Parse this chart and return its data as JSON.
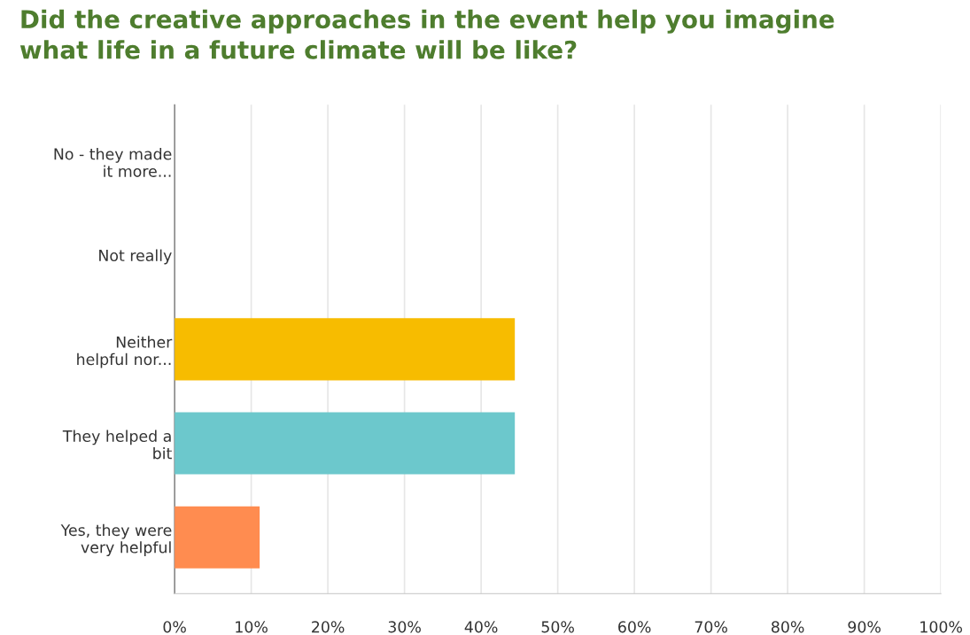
{
  "chart_data": {
    "type": "bar",
    "orientation": "horizontal",
    "title": "Did the creative approaches in the event help you imagine\nwhat life in a future climate will be like?",
    "categories": [
      "No - they made\nit more...",
      "Not really",
      "Neither\nhelpful nor...",
      "They helped a\nbit",
      "Yes, they were\nvery helpful"
    ],
    "values": [
      0,
      0,
      44.4,
      44.4,
      11.1
    ],
    "colors": [
      "#8bb9e0",
      "#a0a0a0",
      "#f7bc00",
      "#6cc8cc",
      "#ff8c50"
    ],
    "xlim": [
      0,
      100
    ],
    "xticks": [
      {
        "value": 0,
        "label": "0%"
      },
      {
        "value": 10,
        "label": "10%"
      },
      {
        "value": 20,
        "label": "20%"
      },
      {
        "value": 30,
        "label": "30%"
      },
      {
        "value": 40,
        "label": "40%"
      },
      {
        "value": 50,
        "label": "50%"
      },
      {
        "value": 60,
        "label": "60%"
      },
      {
        "value": 70,
        "label": "70%"
      },
      {
        "value": 80,
        "label": "80%"
      },
      {
        "value": 90,
        "label": "90%"
      },
      {
        "value": 100,
        "label": "100%"
      }
    ],
    "grid": "x"
  }
}
